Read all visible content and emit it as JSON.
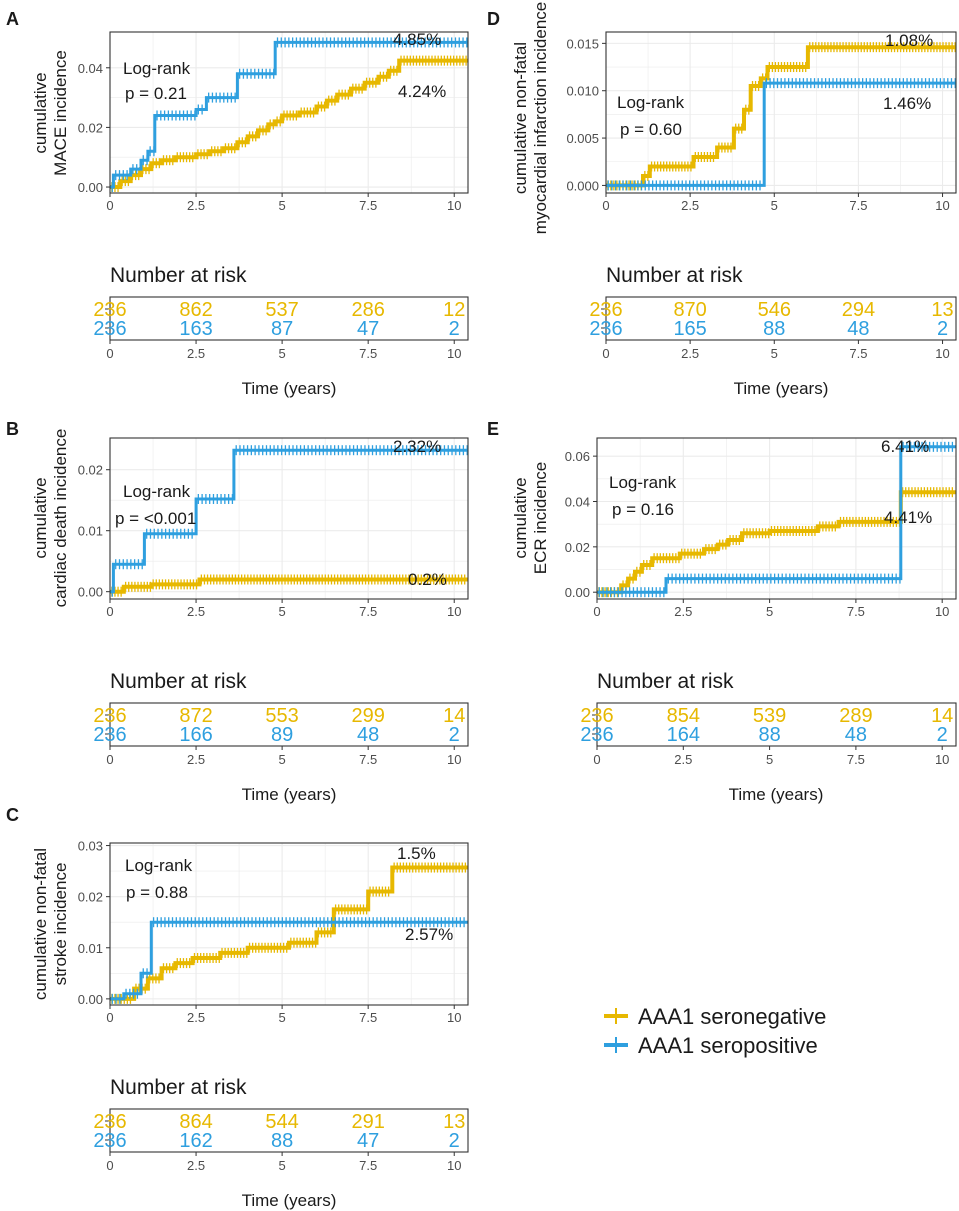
{
  "colors": {
    "seronegative": "#E7B800",
    "seropositive": "#2E9FDF",
    "grid": "#EBEBEB",
    "axis": "#333333",
    "text": "#1a1a1a"
  },
  "legend": {
    "items": [
      {
        "label": "AAA1 seronegative",
        "color_key": "seronegative"
      },
      {
        "label": "AAA1 seropositive",
        "color_key": "seropositive"
      }
    ]
  },
  "risk_table": {
    "title": "Number at risk",
    "xlabel": "Time (years)"
  },
  "chart_data": [
    {
      "panel": "A",
      "type": "line",
      "ylabel_lines": [
        "cumulative",
        "MACE incidence"
      ],
      "xlim": [
        0,
        10.4
      ],
      "ylim": [
        -0.002,
        0.052
      ],
      "x_ticks": [
        0,
        2.5,
        5,
        7.5,
        10
      ],
      "x_tick_labels": [
        "0",
        "2.5",
        "5",
        "7.5",
        "10"
      ],
      "y_ticks": [
        0,
        0.02,
        0.04
      ],
      "y_tick_labels": [
        "0.00",
        "0.02",
        "0.04"
      ],
      "annotations": {
        "logrank": "Log-rank",
        "pvalue": "p = 0.21",
        "label_pos": "4.85%",
        "label_neg": "4.24%"
      },
      "series": [
        {
          "name": "AAA1 seronegative",
          "color_key": "seronegative",
          "x": [
            0,
            0.3,
            0.6,
            0.9,
            1.2,
            1.5,
            1.9,
            2.5,
            2.9,
            3.3,
            3.7,
            4.0,
            4.3,
            4.6,
            4.8,
            5.0,
            5.5,
            6.0,
            6.3,
            6.6,
            7.0,
            7.4,
            7.8,
            8.1,
            8.4,
            10.4
          ],
          "y": [
            0,
            0.002,
            0.004,
            0.006,
            0.008,
            0.009,
            0.01,
            0.011,
            0.012,
            0.013,
            0.015,
            0.017,
            0.019,
            0.021,
            0.022,
            0.024,
            0.025,
            0.027,
            0.029,
            0.031,
            0.033,
            0.035,
            0.037,
            0.039,
            0.0424,
            0.0424
          ]
        },
        {
          "name": "AAA1 seropositive",
          "color_key": "seropositive",
          "x": [
            0,
            0.1,
            0.6,
            0.9,
            1.1,
            1.3,
            2.5,
            2.8,
            3.7,
            4.8,
            10.4
          ],
          "y": [
            0,
            0.004,
            0.006,
            0.009,
            0.012,
            0.024,
            0.026,
            0.03,
            0.038,
            0.0485,
            0.0485
          ]
        }
      ],
      "risk_neg": [
        "236",
        "862",
        "537",
        "286",
        "12"
      ],
      "risk_pos": [
        "236",
        "163",
        "87",
        "47",
        "2"
      ]
    },
    {
      "panel": "B",
      "type": "line",
      "ylabel_lines": [
        "cumulative",
        "cardiac death incidence"
      ],
      "xlim": [
        0,
        10.4
      ],
      "ylim": [
        -0.0012,
        0.0252
      ],
      "x_ticks": [
        0,
        2.5,
        5,
        7.5,
        10
      ],
      "x_tick_labels": [
        "0",
        "2.5",
        "5",
        "7.5",
        "10"
      ],
      "y_ticks": [
        0,
        0.01,
        0.02
      ],
      "y_tick_labels": [
        "0.00",
        "0.01",
        "0.02"
      ],
      "annotations": {
        "logrank": "Log-rank",
        "pvalue": "p = <0.001",
        "label_pos": "2.32%",
        "label_neg": "0.2%"
      },
      "series": [
        {
          "name": "AAA1 seronegative",
          "color_key": "seronegative",
          "x": [
            0,
            0.4,
            1.2,
            2.6,
            10.4
          ],
          "y": [
            0,
            0.0008,
            0.0012,
            0.002,
            0.002
          ]
        },
        {
          "name": "AAA1 seropositive",
          "color_key": "seropositive",
          "x": [
            0,
            0.1,
            1.0,
            2.5,
            3.6,
            10.4
          ],
          "y": [
            0,
            0.0045,
            0.0095,
            0.0152,
            0.0232,
            0.0232
          ]
        }
      ],
      "risk_neg": [
        "236",
        "872",
        "553",
        "299",
        "14"
      ],
      "risk_pos": [
        "236",
        "166",
        "89",
        "48",
        "2"
      ]
    },
    {
      "panel": "C",
      "type": "line",
      "ylabel_lines": [
        "cumulative non-fatal",
        "stroke incidence"
      ],
      "xlim": [
        0,
        10.4
      ],
      "ylim": [
        -0.0012,
        0.0305
      ],
      "x_ticks": [
        0,
        2.5,
        5,
        7.5,
        10
      ],
      "x_tick_labels": [
        "0",
        "2.5",
        "5",
        "7.5",
        "10"
      ],
      "y_ticks": [
        0,
        0.01,
        0.02,
        0.03
      ],
      "y_tick_labels": [
        "0.00",
        "0.01",
        "0.02",
        "0.03"
      ],
      "annotations": {
        "logrank": "Log-rank",
        "pvalue": "p = 0.88",
        "label_pos": "1.5%",
        "label_neg": "2.57%"
      },
      "series": [
        {
          "name": "AAA1 seronegative",
          "color_key": "seronegative",
          "x": [
            0,
            0.7,
            1.1,
            1.5,
            1.9,
            2.4,
            3.2,
            4.0,
            5.2,
            6.0,
            6.5,
            7.5,
            8.2,
            10.4
          ],
          "y": [
            0,
            0.002,
            0.004,
            0.006,
            0.007,
            0.008,
            0.009,
            0.01,
            0.011,
            0.013,
            0.0175,
            0.021,
            0.0257,
            0.0257
          ]
        },
        {
          "name": "AAA1 seropositive",
          "color_key": "seropositive",
          "x": [
            0,
            0.4,
            0.9,
            1.2,
            10.4
          ],
          "y": [
            0,
            0.001,
            0.005,
            0.015,
            0.015
          ]
        }
      ],
      "risk_neg": [
        "236",
        "864",
        "544",
        "291",
        "13"
      ],
      "risk_pos": [
        "236",
        "162",
        "88",
        "47",
        "2"
      ]
    },
    {
      "panel": "D",
      "type": "line",
      "ylabel_lines": [
        "cumulative non-fatal",
        "myocardial infarction incidence"
      ],
      "xlim": [
        0,
        10.4
      ],
      "ylim": [
        -0.0008,
        0.0162
      ],
      "x_ticks": [
        0,
        2.5,
        5,
        7.5,
        10
      ],
      "x_tick_labels": [
        "0",
        "2.5",
        "5",
        "7.5",
        "10"
      ],
      "y_ticks": [
        0,
        0.005,
        0.01,
        0.015
      ],
      "y_tick_labels": [
        "0.000",
        "0.005",
        "0.010",
        "0.015"
      ],
      "annotations": {
        "logrank": "Log-rank",
        "pvalue": "p = 0.60",
        "label_pos": "1.08%",
        "label_neg": "1.46%"
      },
      "series": [
        {
          "name": "AAA1 seronegative",
          "color_key": "seronegative",
          "x": [
            0,
            1.1,
            1.3,
            2.6,
            3.3,
            3.8,
            4.1,
            4.3,
            4.6,
            4.8,
            6.0,
            10.4
          ],
          "y": [
            0,
            0.001,
            0.002,
            0.003,
            0.004,
            0.006,
            0.008,
            0.0105,
            0.0113,
            0.0125,
            0.0146,
            0.0146
          ]
        },
        {
          "name": "AAA1 seropositive",
          "color_key": "seropositive",
          "x": [
            0,
            4.7,
            10.4
          ],
          "y": [
            0,
            0.0108,
            0.0108
          ]
        }
      ],
      "risk_neg": [
        "236",
        "870",
        "546",
        "294",
        "13"
      ],
      "risk_pos": [
        "236",
        "165",
        "88",
        "48",
        "2"
      ]
    },
    {
      "panel": "E",
      "type": "line",
      "ylabel_lines": [
        "cumulative",
        "ECR incidence"
      ],
      "xlim": [
        0,
        10.4
      ],
      "ylim": [
        -0.003,
        0.068
      ],
      "x_ticks": [
        0,
        2.5,
        5,
        7.5,
        10
      ],
      "x_tick_labels": [
        "0",
        "2.5",
        "5",
        "7.5",
        "10"
      ],
      "y_ticks": [
        0,
        0.02,
        0.04,
        0.06
      ],
      "y_tick_labels": [
        "0.00",
        "0.02",
        "0.04",
        "0.06"
      ],
      "annotations": {
        "logrank": "Log-rank",
        "pvalue": "p = 0.16",
        "label_pos": "6.41%",
        "label_neg": "4.41%"
      },
      "series": [
        {
          "name": "AAA1 seronegative",
          "color_key": "seronegative",
          "x": [
            0,
            0.7,
            0.9,
            1.1,
            1.3,
            1.6,
            2.4,
            3.1,
            3.5,
            3.8,
            4.2,
            5.0,
            6.4,
            7.0,
            8.8,
            10.4
          ],
          "y": [
            0,
            0.003,
            0.006,
            0.009,
            0.012,
            0.015,
            0.017,
            0.019,
            0.021,
            0.023,
            0.026,
            0.027,
            0.029,
            0.031,
            0.0441,
            0.0441
          ]
        },
        {
          "name": "AAA1 seropositive",
          "color_key": "seropositive",
          "x": [
            0,
            2.0,
            8.8,
            10.4
          ],
          "y": [
            0,
            0.006,
            0.0641,
            0.0641
          ]
        }
      ],
      "risk_neg": [
        "236",
        "854",
        "539",
        "289",
        "14"
      ],
      "risk_pos": [
        "236",
        "164",
        "88",
        "48",
        "2"
      ]
    }
  ]
}
